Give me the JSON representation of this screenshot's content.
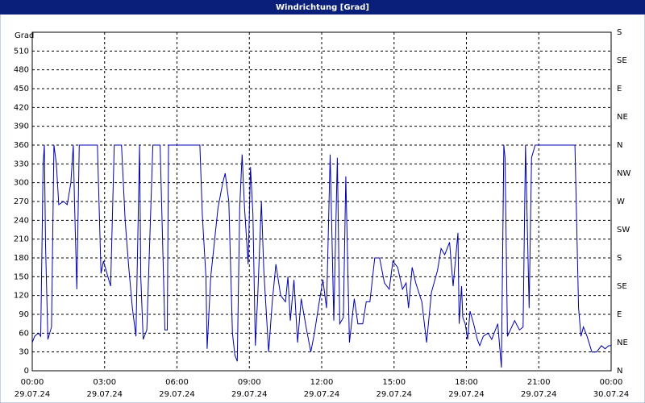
{
  "chart_data": {
    "type": "line",
    "title": "Windrichtung [Grad]",
    "ylabel": "Grad",
    "color": "#0000b0",
    "grid": true,
    "xlim": [
      0,
      24
    ],
    "xticks": [
      {
        "value": 0,
        "label": "00:00"
      },
      {
        "value": 3,
        "label": "03:00"
      },
      {
        "value": 6,
        "label": "06:00"
      },
      {
        "value": 9,
        "label": "09:00"
      },
      {
        "value": 12,
        "label": "12:00"
      },
      {
        "value": 15,
        "label": "15:00"
      },
      {
        "value": 18,
        "label": "18:00"
      },
      {
        "value": 21,
        "label": "21:00"
      },
      {
        "value": 24,
        "label": "00:00"
      }
    ],
    "xtick_dates": [
      "29.07.24",
      "29.07.24",
      "29.07.24",
      "29.07.24",
      "29.07.24",
      "29.07.24",
      "29.07.24",
      "29.07.24",
      "30.07.24"
    ],
    "ylim": [
      0,
      540
    ],
    "yticks": [
      0,
      30,
      60,
      90,
      120,
      150,
      180,
      210,
      240,
      270,
      300,
      330,
      360,
      390,
      420,
      450,
      480,
      510
    ],
    "y2ticks": [
      {
        "value": 0,
        "label": "N"
      },
      {
        "value": 45,
        "label": "NE"
      },
      {
        "value": 90,
        "label": "E"
      },
      {
        "value": 135,
        "label": "SE"
      },
      {
        "value": 180,
        "label": "S"
      },
      {
        "value": 225,
        "label": "SW"
      },
      {
        "value": 270,
        "label": "W"
      },
      {
        "value": 315,
        "label": "NW"
      },
      {
        "value": 360,
        "label": "N"
      },
      {
        "value": 405,
        "label": "NE"
      },
      {
        "value": 450,
        "label": "E"
      },
      {
        "value": 495,
        "label": "SE"
      },
      {
        "value": 540,
        "label": "S"
      }
    ],
    "x": [
      0.0,
      0.1,
      0.25,
      0.35,
      0.45,
      0.5,
      0.55,
      0.65,
      0.8,
      0.9,
      1.0,
      1.1,
      1.3,
      1.45,
      1.6,
      1.7,
      1.75,
      1.85,
      1.95,
      2.2,
      2.5,
      2.7,
      2.85,
      2.95,
      3.1,
      3.25,
      3.4,
      3.7,
      3.85,
      4.0,
      4.15,
      4.3,
      4.45,
      4.5,
      4.6,
      4.75,
      5.0,
      5.3,
      5.5,
      5.6,
      5.65,
      6.0,
      6.5,
      6.95,
      7.05,
      7.2,
      7.25,
      7.4,
      7.7,
      7.9,
      8.0,
      8.15,
      8.3,
      8.4,
      8.5,
      8.6,
      8.7,
      8.8,
      8.95,
      9.05,
      9.15,
      9.25,
      9.35,
      9.5,
      9.6,
      9.8,
      9.95,
      10.1,
      10.3,
      10.5,
      10.6,
      10.7,
      10.85,
      11.0,
      11.15,
      11.35,
      11.55,
      11.7,
      11.9,
      12.05,
      12.2,
      12.35,
      12.5,
      12.65,
      12.75,
      12.9,
      13.0,
      13.15,
      13.35,
      13.5,
      13.7,
      13.85,
      14.0,
      14.2,
      14.4,
      14.6,
      14.8,
      14.95,
      15.15,
      15.35,
      15.5,
      15.6,
      15.75,
      15.9,
      16.15,
      16.35,
      16.55,
      16.8,
      16.95,
      17.1,
      17.3,
      17.45,
      17.65,
      17.7,
      17.8,
      17.85,
      17.95,
      18.05,
      18.15,
      18.3,
      18.45,
      18.55,
      18.7,
      18.9,
      19.05,
      19.3,
      19.45,
      19.55,
      19.6,
      19.7,
      20.0,
      20.2,
      20.35,
      20.45,
      20.6,
      20.7,
      20.85,
      21.1,
      21.5,
      22.0,
      22.5,
      22.65,
      22.75,
      22.85,
      23.0,
      23.2,
      23.4,
      23.6,
      23.75,
      23.9,
      24.0
    ],
    "values": [
      45,
      55,
      60,
      55,
      330,
      360,
      200,
      50,
      70,
      360,
      330,
      265,
      270,
      265,
      300,
      360,
      270,
      130,
      360,
      360,
      360,
      360,
      155,
      175,
      155,
      135,
      360,
      360,
      240,
      165,
      100,
      55,
      360,
      150,
      50,
      65,
      360,
      360,
      65,
      65,
      360,
      360,
      360,
      360,
      250,
      150,
      35,
      150,
      260,
      300,
      315,
      270,
      60,
      25,
      15,
      260,
      345,
      260,
      170,
      325,
      250,
      40,
      120,
      270,
      160,
      30,
      110,
      170,
      120,
      110,
      150,
      80,
      145,
      45,
      115,
      70,
      30,
      60,
      110,
      145,
      100,
      345,
      80,
      340,
      75,
      85,
      310,
      45,
      115,
      75,
      75,
      110,
      110,
      180,
      180,
      140,
      130,
      175,
      165,
      130,
      140,
      100,
      165,
      140,
      110,
      45,
      125,
      160,
      195,
      185,
      205,
      135,
      220,
      75,
      135,
      85,
      75,
      50,
      95,
      75,
      50,
      40,
      55,
      60,
      50,
      75,
      5,
      360,
      340,
      55,
      80,
      65,
      70,
      360,
      100,
      340,
      360,
      360,
      360,
      360,
      360,
      100,
      55,
      70,
      55,
      30,
      30,
      40,
      35,
      40,
      40
    ]
  }
}
